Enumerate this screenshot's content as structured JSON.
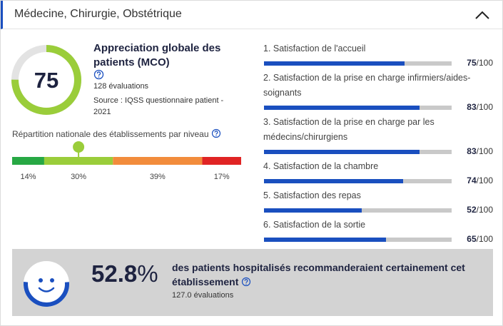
{
  "header": {
    "title": "Médecine, Chirurgie, Obstétrique"
  },
  "scale": {
    "value": 100,
    "label": "/100"
  },
  "score": {
    "value": 75,
    "title": "Appreciation globale des patients (MCO)",
    "evaluations": "128 évaluations",
    "source": "Source : IQSS questionnaire patient - 2021"
  },
  "distribution": {
    "title": "Répartition nationale des établissements par niveau",
    "marker_segment": 1,
    "segments": [
      {
        "value": 14,
        "label": "14%",
        "color": "#27a844"
      },
      {
        "value": 30,
        "label": "30%",
        "color": "#9acd3a"
      },
      {
        "value": 39,
        "label": "39%",
        "color": "#f28c3c"
      },
      {
        "value": 17,
        "label": "17%",
        "color": "#e02424"
      }
    ]
  },
  "criteria": [
    {
      "label": "1. Satisfaction de l'accueil",
      "value": 75
    },
    {
      "label": "2. Satisfaction de la prise en charge infirmiers/aides-soignants",
      "value": 83
    },
    {
      "label": "3. Satisfaction de la prise en charge par les médecins/chirurgiens",
      "value": 83
    },
    {
      "label": "4. Satisfaction de la chambre",
      "value": 74
    },
    {
      "label": "5. Satisfaction des repas",
      "value": 52
    },
    {
      "label": "6. Satisfaction de la sortie",
      "value": 65
    }
  ],
  "summary": {
    "percent": 52.8,
    "unit": "%",
    "text": "des patients hospitalisés recommanderaient certainement cet établissement",
    "evaluations": "127.0 évaluations"
  }
}
